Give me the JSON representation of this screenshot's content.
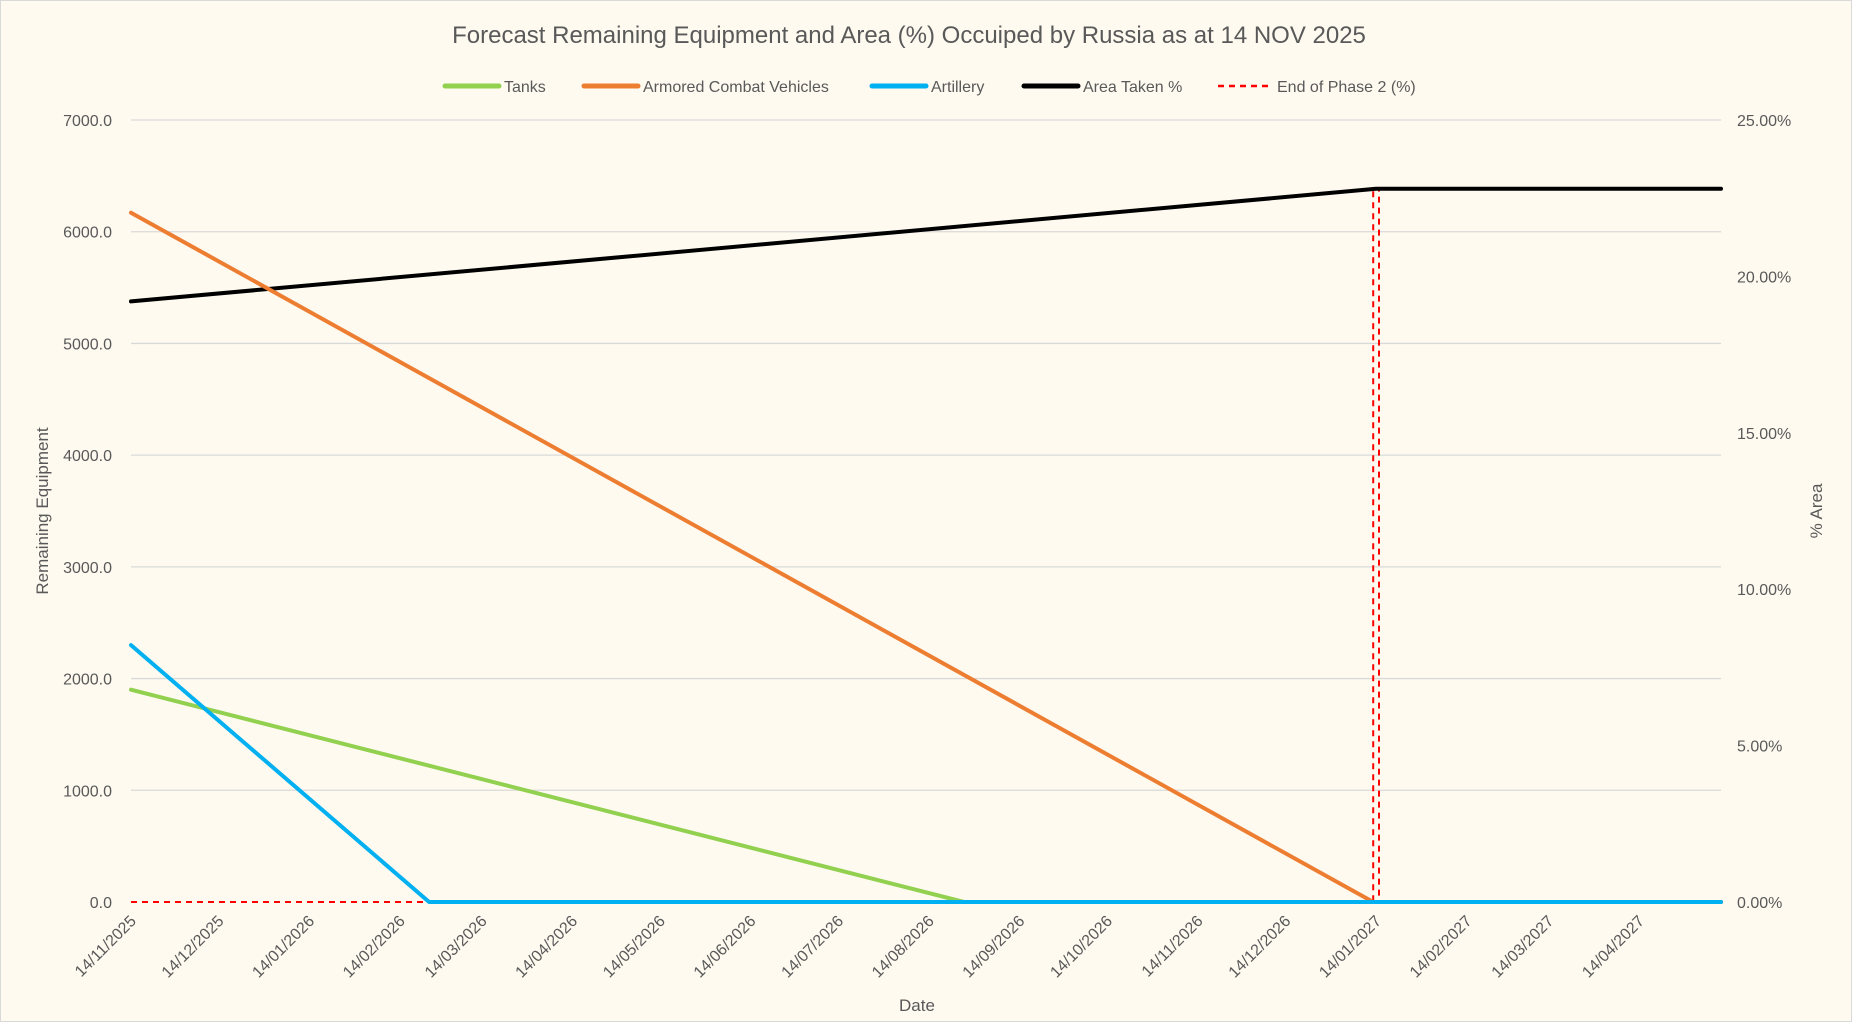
{
  "chart_data": {
    "type": "line",
    "title": "Forecast Remaining Equipment and Area (%) Occuiped by Russia as at 14 NOV 2025",
    "xlabel": "Date",
    "ylabel": "Remaining Equipment",
    "y2label": "% Area",
    "xlim": [
      "2025-11-14",
      "2027-05-12"
    ],
    "ylim": [
      0,
      7000
    ],
    "y2lim": [
      0,
      25
    ],
    "grid": true,
    "legend": "top",
    "x_tick_labels": [
      "14/11/2025",
      "14/12/2025",
      "14/01/2026",
      "14/02/2026",
      "14/03/2026",
      "14/04/2026",
      "14/05/2026",
      "14/06/2026",
      "14/07/2026",
      "14/08/2026",
      "14/09/2026",
      "14/10/2026",
      "14/11/2026",
      "14/12/2026",
      "14/01/2027",
      "14/02/2027",
      "14/03/2027",
      "14/04/2027"
    ],
    "y_tick_labels": [
      "0.0",
      "1000.0",
      "2000.0",
      "3000.0",
      "4000.0",
      "5000.0",
      "6000.0",
      "7000.0"
    ],
    "y2_tick_labels": [
      "0.00%",
      "5.00%",
      "10.00%",
      "15.00%",
      "20.00%",
      "25.00%"
    ],
    "series": [
      {
        "name": "Tanks",
        "axis": "left",
        "color": "#92d050",
        "dash": false,
        "points": [
          [
            "2025-11-14",
            1900
          ],
          [
            "2026-08-26",
            0
          ],
          [
            "2027-05-12",
            0
          ]
        ]
      },
      {
        "name": "Armored Combat Vehicles",
        "axis": "left",
        "color": "#ed7d31",
        "dash": false,
        "points": [
          [
            "2025-11-14",
            6170
          ],
          [
            "2027-01-13",
            0
          ],
          [
            "2027-05-12",
            0
          ]
        ]
      },
      {
        "name": "Artillery",
        "axis": "left",
        "color": "#00b0f0",
        "dash": false,
        "points": [
          [
            "2025-11-14",
            2300
          ],
          [
            "2026-02-24",
            0
          ],
          [
            "2027-05-12",
            0
          ]
        ]
      },
      {
        "name": "Area Taken %",
        "axis": "right",
        "color": "#000000",
        "dash": false,
        "points": [
          [
            "2025-11-14",
            19.2
          ],
          [
            "2027-01-14",
            22.8
          ],
          [
            "2027-05-12",
            22.8
          ]
        ]
      },
      {
        "name": "End of Phase 2 (%)",
        "axis": "right",
        "color": "#ff0000",
        "dash": true,
        "points": [
          [
            "2025-11-14",
            0
          ],
          [
            "2027-01-13",
            0
          ],
          [
            "2027-01-13",
            22.8
          ],
          [
            "2027-01-15",
            22.8
          ],
          [
            "2027-01-15",
            0
          ],
          [
            "2027-05-12",
            0
          ]
        ]
      }
    ]
  }
}
